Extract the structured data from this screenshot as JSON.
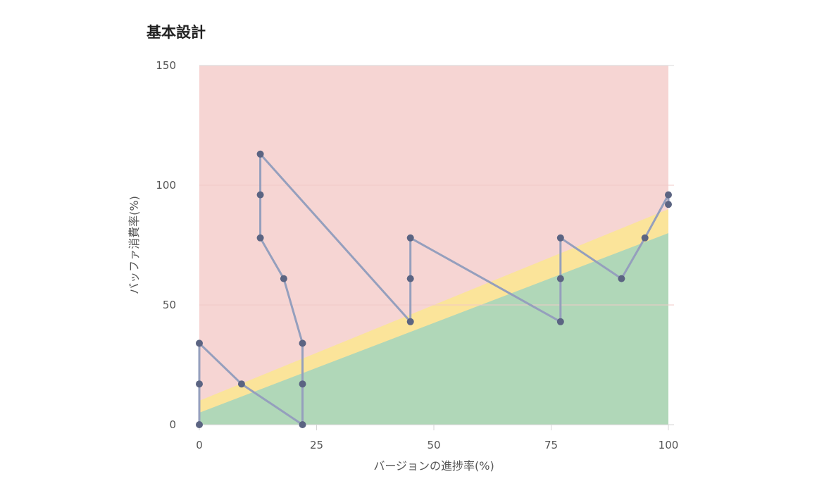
{
  "chart_data": {
    "type": "line",
    "title": "基本設計",
    "xlabel": "バージョンの進捗率(%)",
    "ylabel": "バッファ消費率(%)",
    "xlim": [
      0,
      100
    ],
    "ylim": [
      0,
      150
    ],
    "x_ticks": [
      0,
      25,
      50,
      75,
      100
    ],
    "y_ticks": [
      0,
      50,
      100,
      150
    ],
    "grid": true,
    "colors": {
      "red_zone": "#f6d5d3",
      "yellow_zone": "#fbe49a",
      "green_zone": "#b0d7b8",
      "line": "#959fbd",
      "point": "#5b6482",
      "grid": "#f0c9c7",
      "axis": "#d5d5d5"
    },
    "zones": {
      "green_upper": [
        [
          0,
          5
        ],
        [
          100,
          80
        ]
      ],
      "yellow_upper": [
        [
          0,
          10
        ],
        [
          100,
          90
        ]
      ]
    },
    "series": [
      {
        "points": [
          [
            0,
            0
          ],
          [
            0,
            17
          ],
          [
            0,
            34
          ],
          [
            9,
            17
          ],
          [
            22,
            0
          ],
          [
            22,
            17
          ],
          [
            22,
            34
          ],
          [
            18,
            61
          ],
          [
            13,
            78
          ],
          [
            13,
            96
          ],
          [
            13,
            113
          ],
          [
            45,
            43
          ],
          [
            45,
            61
          ],
          [
            45,
            78
          ],
          [
            77,
            43
          ],
          [
            77,
            61
          ],
          [
            77,
            78
          ],
          [
            90,
            61
          ],
          [
            95,
            78
          ],
          [
            100,
            96
          ],
          [
            100,
            92
          ]
        ]
      }
    ]
  }
}
